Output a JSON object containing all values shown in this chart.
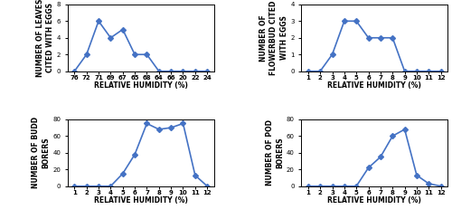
{
  "subplot1": {
    "x_labels": [
      "76",
      "72",
      "71",
      "69",
      "67",
      "65",
      "68",
      "64",
      "66",
      "20",
      "22",
      "24"
    ],
    "y_values": [
      0,
      2,
      6,
      4,
      5,
      2,
      2,
      0,
      0,
      0,
      0,
      0
    ],
    "ylabel": "NUMBER OF LEAVES\nCITED WITH EGGS",
    "xlabel": "RELATIVE HUMIDITY (%)",
    "ylim": [
      0,
      8
    ],
    "yticks": [
      0,
      2,
      4,
      6,
      8
    ]
  },
  "subplot2": {
    "x_labels": [
      "1",
      "2",
      "3",
      "4",
      "5",
      "6",
      "7",
      "8",
      "9",
      "10",
      "11",
      "12"
    ],
    "y_values": [
      0,
      0,
      1,
      3,
      3,
      2,
      2,
      2,
      0,
      0,
      0,
      0
    ],
    "ylabel": "NUMBER OF\nFLOWERBUD CITED\nWITH EGGS",
    "xlabel": "RELATIVE HUMIDITY (%)",
    "ylim": [
      0,
      4
    ],
    "yticks": [
      0,
      1,
      2,
      3,
      4
    ]
  },
  "subplot3": {
    "x_labels": [
      "1",
      "2",
      "3",
      "4",
      "5",
      "6",
      "7",
      "8",
      "9",
      "10",
      "11",
      "12"
    ],
    "y_values": [
      0,
      0,
      0,
      0,
      15,
      38,
      75,
      68,
      70,
      75,
      13,
      0
    ],
    "ylabel": "NUMBER OF BUDD\nBORERS",
    "xlabel": "RELATIVE HUMIDITY (%)",
    "ylim": [
      0,
      80
    ],
    "yticks": [
      0,
      20,
      40,
      60,
      80
    ]
  },
  "subplot4": {
    "x_labels": [
      "1",
      "2",
      "3",
      "4",
      "5",
      "6",
      "7",
      "8",
      "9",
      "10",
      "11",
      "12"
    ],
    "y_values": [
      0,
      0,
      0,
      0,
      0,
      22,
      35,
      60,
      68,
      13,
      3,
      0
    ],
    "ylabel": "NUMBER OF POD\nBORERS",
    "xlabel": "RELATIVE HUMIDITY (%)",
    "ylim": [
      0,
      80
    ],
    "yticks": [
      0,
      20,
      40,
      60,
      80
    ]
  },
  "line_color": "#4472C4",
  "marker": "D",
  "marker_size": 3,
  "line_width": 1.2,
  "label_fontsize": 5.5,
  "tick_fontsize": 5.0
}
